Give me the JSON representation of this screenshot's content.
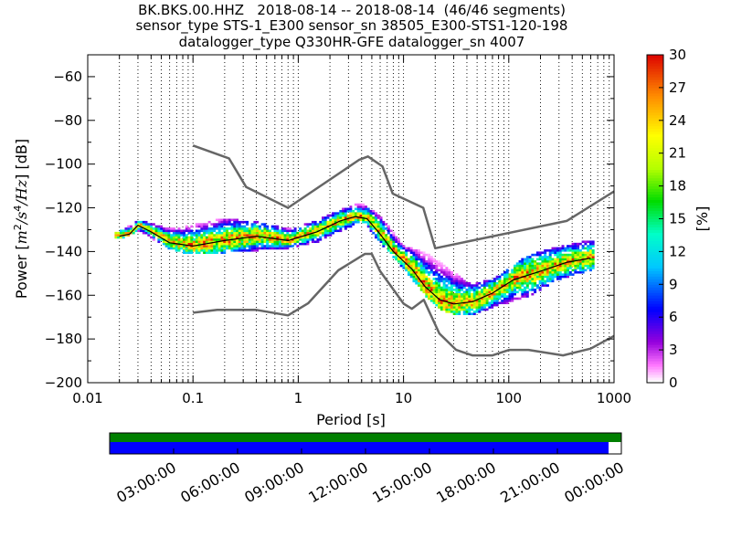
{
  "chart_data": {
    "type": "heatmap",
    "title_lines": [
      "BK.BKS.00.HHZ   2018-08-14 -- 2018-08-14  (46/46 segments)",
      "sensor_type STS-1_E300 sensor_sn 38505_E300-STS1-120-198",
      "datalogger_type Q330HR-GFE datalogger_sn 4007"
    ],
    "xlabel": "Period [s]",
    "ylabel": "Power [m²/s⁴/Hz] [dB]",
    "ylabel_parts": [
      "Power ",
      "m",
      "2",
      "/s",
      "4",
      "/Hz",
      " [dB]"
    ],
    "x_scale": "log",
    "xlim": [
      0.01,
      1000
    ],
    "ylim": [
      -200,
      -50
    ],
    "x_ticks": [
      0.01,
      0.1,
      1,
      10,
      100,
      1000
    ],
    "x_tick_labels": [
      "0.01",
      "0.1",
      "1",
      "10",
      "100",
      "1000"
    ],
    "y_ticks": [
      -60,
      -80,
      -100,
      -120,
      -140,
      -160,
      -180,
      -200
    ],
    "y_tick_labels": [
      "−60",
      "−80",
      "−100",
      "−120",
      "−140",
      "−160",
      "−180",
      "−200"
    ],
    "grid": "vertical dotted at log subdivisions",
    "colorbar": {
      "label": "[%]",
      "ticks": [
        "0",
        "3",
        "6",
        "9",
        "12",
        "15",
        "18",
        "21",
        "24",
        "27",
        "30"
      ],
      "range": [
        0,
        30
      ],
      "colormap": "pqlx"
    },
    "noise_models": {
      "high_noise_model": {
        "period": [
          0.1,
          0.22,
          0.32,
          0.8,
          3.8,
          4.6,
          6.3,
          7.9,
          15.4,
          20,
          354.8,
          1000
        ],
        "power": [
          -91.5,
          -97.4,
          -110.5,
          -120,
          -98,
          -96.5,
          -101,
          -113.5,
          -120,
          -138.5,
          -126,
          -112.5
        ]
      },
      "low_noise_model": {
        "period": [
          0.1,
          0.17,
          0.4,
          0.8,
          1.24,
          2.4,
          4.3,
          5,
          6,
          10,
          12,
          15.6,
          21.9,
          31.6,
          45,
          70,
          101,
          154,
          328,
          600,
          1000
        ],
        "power": [
          -168,
          -166.7,
          -166.7,
          -169.2,
          -163.7,
          -148.6,
          -141.1,
          -141.1,
          -149,
          -163.8,
          -166.2,
          -162.1,
          -177.5,
          -185,
          -187.5,
          -187.5,
          -185,
          -185,
          -187.5,
          -184.4,
          -178.6
        ]
      }
    },
    "median_curve": {
      "period": [
        0.02,
        0.025,
        0.03,
        0.04,
        0.06,
        0.1,
        0.2,
        0.4,
        0.8,
        1.5,
        2.5,
        3.5,
        4.5,
        6,
        8,
        12,
        16,
        22,
        30,
        45,
        70,
        110,
        200,
        350,
        600
      ],
      "power": [
        -133,
        -132,
        -128,
        -131,
        -136,
        -137.5,
        -135,
        -133,
        -135,
        -131,
        -126,
        -124,
        -125,
        -132,
        -140,
        -148,
        -156,
        -162,
        -164,
        -163,
        -159,
        -153,
        -149,
        -145,
        -143
      ]
    },
    "min_curve": {
      "period": [
        0.02,
        0.03,
        0.06,
        0.1,
        0.2,
        0.4,
        0.8,
        1.5,
        2.5,
        4,
        6,
        10,
        16,
        25,
        40,
        70,
        150,
        300,
        600
      ],
      "power": [
        -134,
        -130,
        -139,
        -141,
        -140,
        -139,
        -138,
        -135,
        -130,
        -126,
        -136,
        -148,
        -160,
        -168,
        -169,
        -165,
        -160,
        -152,
        -148
      ]
    },
    "max_curve": {
      "period": [
        0.02,
        0.03,
        0.06,
        0.1,
        0.2,
        0.4,
        0.8,
        1.5,
        2.5,
        4,
        6,
        10,
        16,
        25,
        40,
        70,
        150,
        300,
        600
      ],
      "power": [
        -132,
        -127,
        -131,
        -129,
        -126,
        -128,
        -131,
        -127,
        -122,
        -119,
        -126,
        -139,
        -142,
        -148,
        -156,
        -154,
        -143,
        -139,
        -136
      ]
    }
  },
  "time_bar": {
    "tick_labels": [
      "03:00:00",
      "06:00:00",
      "09:00:00",
      "12:00:00",
      "15:00:00",
      "18:00:00",
      "21:00:00",
      "00:00:00"
    ],
    "top_color": "#007f00",
    "bottom_color": "#0000ff",
    "data_coverage_fraction": 0.975
  }
}
